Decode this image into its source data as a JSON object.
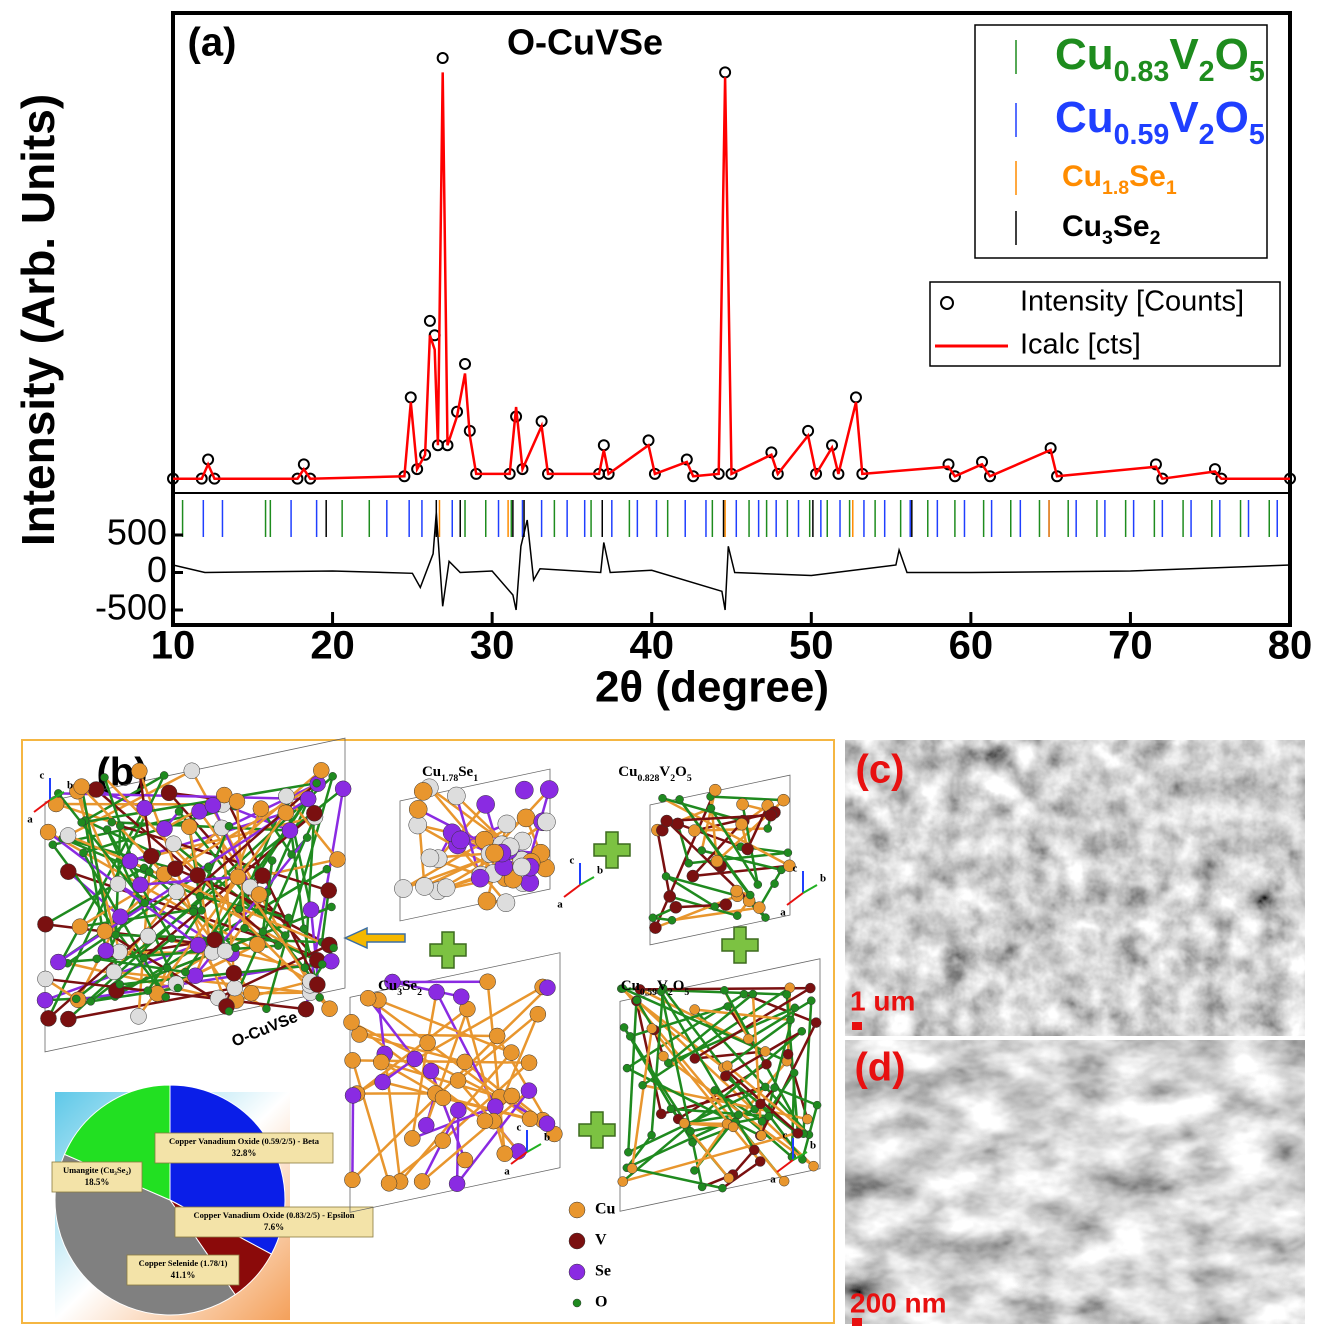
{
  "chart_data": [
    {
      "type": "line",
      "panel_label": "(a)",
      "title": "O-CuVSe",
      "ylabel": "Intensity (Arb. Units)",
      "xlim": [
        10,
        80
      ],
      "ylim": [
        0,
        100
      ],
      "legend": "upper right",
      "x": [
        10,
        11.8,
        12.2,
        12.6,
        17.8,
        18.2,
        18.6,
        24.5,
        24.9,
        25.3,
        25.8,
        26.1,
        26.4,
        26.6,
        26.9,
        27.2,
        27.8,
        28.3,
        28.6,
        29.0,
        31.1,
        31.5,
        31.9,
        33.1,
        33.5,
        36.7,
        37.0,
        37.3,
        39.8,
        40.2,
        42.2,
        42.6,
        44.2,
        44.6,
        45.0,
        47.5,
        47.9,
        49.8,
        50.3,
        51.3,
        51.7,
        52.8,
        53.2,
        58.6,
        59.0,
        60.7,
        61.2,
        65.0,
        65.4,
        71.6,
        72.0,
        75.3,
        75.7,
        80
      ],
      "series": [
        {
          "name": "Intensity [Counts]",
          "color": "#000000",
          "style": "markers",
          "values": [
            3,
            3,
            7,
            3,
            3,
            6,
            3,
            3.5,
            20,
            5,
            8,
            36,
            33,
            10,
            91,
            10,
            17,
            27,
            13,
            4,
            4,
            16,
            5,
            15,
            4,
            4,
            10,
            4,
            11,
            4,
            7,
            3.5,
            4,
            88,
            4,
            8.5,
            4,
            13,
            4,
            10,
            4,
            20,
            4,
            6,
            3.5,
            6.5,
            3.5,
            9.4,
            3.5,
            6,
            3,
            5,
            3,
            3
          ]
        },
        {
          "name": "Icalc [cts]",
          "color": "#ff0000",
          "style": "line",
          "values": [
            3,
            3,
            6,
            3,
            3,
            5,
            3,
            3.5,
            19,
            5,
            8,
            33,
            30,
            10,
            88,
            10,
            16,
            25,
            12,
            4,
            4,
            18,
            5,
            14,
            4,
            4,
            9,
            4,
            10,
            4,
            6.5,
            3.5,
            4,
            87,
            4,
            8,
            4,
            12,
            4,
            9.5,
            4,
            19,
            4,
            5.5,
            3.5,
            6,
            3.5,
            9,
            3.5,
            5.5,
            3,
            4.5,
            3,
            3
          ]
        }
      ]
    },
    {
      "type": "rug",
      "xlim": [
        10,
        80
      ],
      "series": [
        {
          "name": "Cu0.83V2O5",
          "color": "#1e8c1e",
          "positions": [
            10.6,
            15.8,
            16.1,
            20.6,
            22.3,
            28.3,
            29.6,
            31.2,
            33.9,
            36.2,
            38.6,
            41.0,
            43.8,
            46.1,
            47.2,
            48.5,
            49.9,
            51.0,
            52.4,
            54.0,
            55.6,
            57.3,
            59.0,
            60.8,
            62.5,
            64.3,
            66.1,
            67.9,
            69.7,
            71.5,
            73.3,
            75.1,
            76.9,
            78.7
          ]
        },
        {
          "name": "Cu0.59V2O5",
          "color": "#1f3fff",
          "positions": [
            11.9,
            13.1,
            17.4,
            19.0,
            23.4,
            24.8,
            25.6,
            27.5,
            30.4,
            31.9,
            33.1,
            34.7,
            35.8,
            37.5,
            39.1,
            40.3,
            42.1,
            43.4,
            45.3,
            46.7,
            47.8,
            49.2,
            50.6,
            51.8,
            53.3,
            54.6,
            56.2,
            57.9,
            59.6,
            61.3,
            63.1,
            64.9,
            66.6,
            68.4,
            70.2,
            72.0,
            73.8,
            75.6,
            77.4,
            79.2
          ]
        },
        {
          "name": "Cu1.8Se1",
          "color": "#ff8c00",
          "positions": [
            26.7,
            31.0,
            44.6,
            52.6,
            64.9
          ]
        },
        {
          "name": "Cu3Se2",
          "color": "#000000",
          "positions": [
            19.6,
            26.5,
            28.0,
            31.3,
            32.0,
            36.9,
            44.5,
            50.1,
            56.3
          ]
        }
      ]
    },
    {
      "type": "line",
      "xlabel": "2θ (degree)",
      "xlim": [
        10,
        80
      ],
      "ylim": [
        -700,
        700
      ],
      "xticks": [
        10,
        20,
        30,
        40,
        50,
        60,
        70,
        80
      ],
      "yticks": [
        -500,
        0,
        500
      ],
      "color": "#000000",
      "x": [
        10,
        12,
        20,
        25,
        25.5,
        26.3,
        26.5,
        26.9,
        27.3,
        28,
        30,
        31.3,
        31.5,
        31.8,
        32.2,
        32.6,
        33,
        36.8,
        37,
        37.4,
        40,
        44.4,
        44.6,
        44.8,
        45.2,
        50,
        55.3,
        55.5,
        56,
        60,
        70,
        80
      ],
      "values": [
        100,
        0,
        20,
        -10,
        -200,
        250,
        800,
        -450,
        150,
        0,
        20,
        -300,
        -500,
        350,
        700,
        -100,
        50,
        0,
        400,
        0,
        30,
        -250,
        -500,
        350,
        0,
        -40,
        100,
        300,
        0,
        0,
        20,
        100
      ]
    },
    {
      "type": "pie",
      "categories": [
        "Copper Vanadium Oxide (0.59/2/5) - Beta",
        "Copper Vanadium Oxide (0.83/2/5) - Epsilon",
        "Copper Selenide (1.78/1)",
        "Umangite (Cu3Se2)"
      ],
      "values": [
        32.8,
        7.6,
        41.1,
        18.5
      ],
      "value_labels": [
        "32.8%",
        "7.6%",
        "41.1%",
        "18.5%"
      ],
      "colors": [
        "#0a1ee8",
        "#8b0a0a",
        "#808080",
        "#22e022"
      ]
    }
  ],
  "panel_b": {
    "label": "(b)",
    "structures": [
      "Cu1.78Se1",
      "Cu0.828V2O5",
      "Cu3Se2",
      "Cu0.59V2O5"
    ],
    "composite": "O-CuVSe",
    "axes": [
      "c",
      "b",
      "a"
    ],
    "atoms": [
      {
        "name": "Cu",
        "color": "#e8962e"
      },
      {
        "name": "V",
        "color": "#7a1010"
      },
      {
        "name": "Se",
        "color": "#8a2be2"
      },
      {
        "name": "O",
        "color": "#1f8a1f"
      }
    ]
  },
  "panel_c": {
    "label": "(c)",
    "scale": "1 um"
  },
  "panel_d": {
    "label": "(d)",
    "scale": "200 nm"
  }
}
